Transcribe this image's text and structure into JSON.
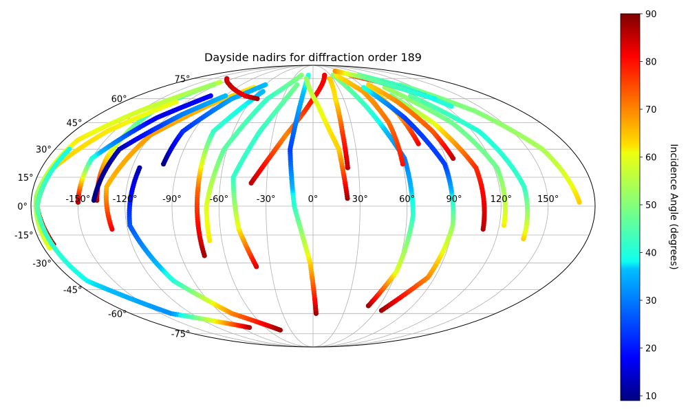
{
  "chart_data": {
    "type": "scatter",
    "projection": "mollweide",
    "title": "Dayside nadirs for diffraction order 189",
    "xlabel": "",
    "ylabel": "",
    "xlim": [
      -180,
      180
    ],
    "ylim": [
      -90,
      90
    ],
    "grid": true,
    "x_ticks": [
      -150,
      -120,
      -90,
      -60,
      -30,
      0,
      30,
      60,
      90,
      120,
      150
    ],
    "x_tick_labels": [
      "-150°",
      "-120°",
      "-90°",
      "-60°",
      "-30°",
      "0°",
      "30°",
      "60°",
      "90°",
      "120°",
      "150°"
    ],
    "y_ticks": [
      -75,
      -60,
      -45,
      -30,
      -15,
      0,
      15,
      30,
      45,
      60,
      75
    ],
    "y_tick_labels": [
      "-75°",
      "-60°",
      "-45°",
      "-30°",
      "-15°",
      "0°",
      "15°",
      "30°",
      "45°",
      "60°",
      "75°"
    ],
    "colorbar": {
      "label": "Incidence Angle (degrees)",
      "colormap": "jet",
      "min": 9,
      "max": 90,
      "ticks": [
        10,
        20,
        30,
        40,
        50,
        60,
        70,
        80,
        90
      ],
      "tick_labels": [
        "10",
        "20",
        "30",
        "40",
        "50",
        "60",
        "70",
        "80",
        "90"
      ]
    },
    "series": [
      {
        "points": [
          [
            -138,
            3,
            87
          ],
          [
            -140,
            25,
            64
          ],
          [
            -138,
            55,
            38
          ],
          [
            -125,
            72,
            56
          ]
        ]
      },
      {
        "points": [
          [
            -176,
            -22,
            60
          ],
          [
            -177,
            5,
            52
          ],
          [
            -170,
            35,
            62
          ],
          [
            -150,
            52,
            58
          ],
          [
            -125,
            70,
            52
          ]
        ]
      },
      {
        "points": [
          [
            -172,
            -20,
            88
          ],
          [
            -176,
            0,
            78
          ],
          [
            -172,
            20,
            64
          ],
          [
            -155,
            40,
            62
          ],
          [
            -130,
            58,
            60
          ]
        ]
      },
      {
        "points": [
          [
            -170,
            30,
            38
          ],
          [
            -176,
            0,
            45
          ],
          [
            -170,
            -40,
            38
          ],
          [
            -140,
            -60,
            32
          ],
          [
            -80,
            -70,
            86
          ]
        ]
      },
      {
        "points": [
          [
            -150,
            2,
            87
          ],
          [
            -150,
            25,
            40
          ],
          [
            -128,
            48,
            16
          ],
          [
            -105,
            62,
            18
          ]
        ]
      },
      {
        "points": [
          [
            -130,
            -12,
            82
          ],
          [
            -133,
            10,
            66
          ],
          [
            -120,
            38,
            68
          ],
          [
            -95,
            56,
            66
          ],
          [
            -70,
            68,
            62
          ]
        ]
      },
      {
        "points": [
          [
            -140,
            3,
            9
          ],
          [
            -135,
            30,
            12
          ],
          [
            -110,
            50,
            30
          ],
          [
            -90,
            62,
            36
          ]
        ]
      },
      {
        "points": [
          [
            -115,
            20,
            12
          ],
          [
            -118,
            -10,
            26
          ],
          [
            -105,
            -40,
            40
          ],
          [
            -80,
            -60,
            70
          ],
          [
            -44,
            -72,
            88
          ]
        ]
      },
      {
        "points": [
          [
            -100,
            22,
            9
          ],
          [
            -98,
            40,
            22
          ],
          [
            -80,
            60,
            34
          ],
          [
            -60,
            70,
            36
          ]
        ]
      },
      {
        "points": [
          [
            -74,
            -26,
            88
          ],
          [
            -74,
            10,
            72
          ],
          [
            -75,
            40,
            42
          ],
          [
            -55,
            65,
            36
          ]
        ]
      },
      {
        "points": [
          [
            -68,
            -18,
            62
          ],
          [
            -68,
            0,
            60
          ],
          [
            -62,
            30,
            46
          ],
          [
            -45,
            60,
            42
          ],
          [
            -20,
            78,
            50
          ]
        ]
      },
      {
        "points": [
          [
            -40,
            -32,
            84
          ],
          [
            -48,
            -12,
            62
          ],
          [
            -52,
            15,
            42
          ],
          [
            -40,
            40,
            42
          ],
          [
            -20,
            70,
            48
          ]
        ]
      },
      {
        "points": [
          [
            -40,
            12,
            86
          ],
          [
            -20,
            38,
            70
          ],
          [
            0,
            60,
            80
          ],
          [
            20,
            78,
            82
          ]
        ]
      },
      {
        "points": [
          [
            3,
            -60,
            88
          ],
          [
            -2,
            -30,
            64
          ],
          [
            -12,
            0,
            42
          ],
          [
            -16,
            30,
            24
          ],
          [
            -12,
            55,
            34
          ],
          [
            -8,
            78,
            40
          ]
        ]
      },
      {
        "points": [
          [
            22,
            4,
            88
          ],
          [
            18,
            30,
            64
          ],
          [
            5,
            55,
            60
          ],
          [
            -10,
            75,
            52
          ]
        ]
      },
      {
        "points": [
          [
            23,
            20,
            86
          ],
          [
            22,
            40,
            76
          ],
          [
            22,
            60,
            62
          ],
          [
            25,
            75,
            64
          ]
        ]
      },
      {
        "points": [
          [
            50,
            -55,
            88
          ],
          [
            60,
            -35,
            60
          ],
          [
            64,
            -5,
            42
          ],
          [
            62,
            25,
            30
          ],
          [
            48,
            55,
            42
          ],
          [
            35,
            78,
            50
          ]
        ]
      },
      {
        "points": [
          [
            60,
            22,
            80
          ],
          [
            60,
            45,
            72
          ],
          [
            55,
            65,
            68
          ],
          [
            40,
            78,
            62
          ]
        ]
      },
      {
        "points": [
          [
            75,
            33,
            82
          ],
          [
            72,
            50,
            68
          ],
          [
            65,
            68,
            62
          ]
        ]
      },
      {
        "points": [
          [
            110,
            -12,
            86
          ],
          [
            108,
            20,
            78
          ],
          [
            95,
            45,
            60
          ],
          [
            80,
            62,
            48
          ]
        ]
      },
      {
        "points": [
          [
            95,
            25,
            86
          ],
          [
            90,
            40,
            74
          ],
          [
            80,
            58,
            70
          ],
          [
            70,
            70,
            64
          ]
        ]
      },
      {
        "points": [
          [
            65,
            -58,
            88
          ],
          [
            85,
            -38,
            70
          ],
          [
            90,
            -10,
            52
          ],
          [
            88,
            22,
            24
          ],
          [
            75,
            48,
            24
          ],
          [
            60,
            68,
            40
          ]
        ]
      },
      {
        "points": [
          [
            123,
            -10,
            62
          ],
          [
            122,
            20,
            48
          ],
          [
            110,
            45,
            48
          ],
          [
            85,
            68,
            52
          ]
        ]
      },
      {
        "points": [
          [
            138,
            -17,
            64
          ],
          [
            136,
            10,
            42
          ],
          [
            125,
            40,
            40
          ],
          [
            100,
            62,
            46
          ]
        ]
      },
      {
        "points": [
          [
            170,
            2,
            64
          ],
          [
            160,
            30,
            54
          ],
          [
            140,
            52,
            50
          ],
          [
            110,
            70,
            48
          ]
        ]
      },
      {
        "points": [
          [
            125,
            55,
            40
          ],
          [
            105,
            70,
            42
          ],
          [
            80,
            78,
            46
          ]
        ]
      },
      {
        "points": [
          [
            115,
            62,
            86
          ],
          [
            90,
            72,
            80
          ],
          [
            65,
            78,
            74
          ]
        ]
      },
      {
        "points": [
          [
            50,
            82,
            70
          ],
          [
            80,
            76,
            48
          ],
          [
            120,
            60,
            38
          ]
        ]
      },
      {
        "points": [
          [
            -130,
            75,
            84
          ],
          [
            -105,
            70,
            86
          ],
          [
            -70,
            62,
            82
          ],
          [
            -55,
            60,
            88
          ]
        ]
      }
    ]
  }
}
